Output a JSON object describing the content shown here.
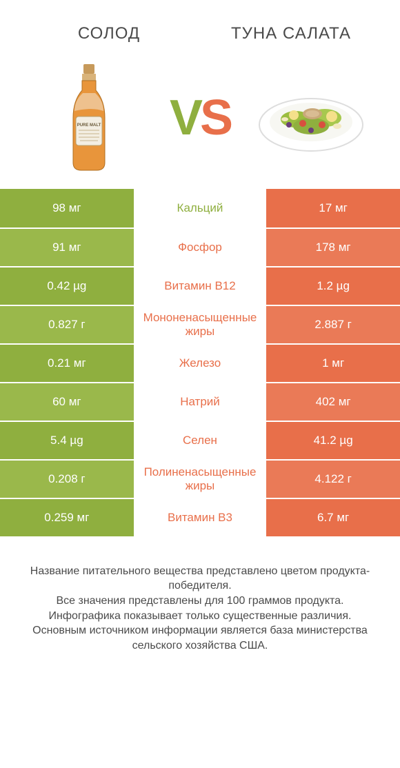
{
  "colors": {
    "green": "#8faf3f",
    "greenAlt": "#9ab84b",
    "orange": "#e86f4a",
    "orangeAlt": "#ea7a57",
    "midText_green": "#8faf3f",
    "midText_orange": "#e86f4a",
    "headerText": "#4a4a4a"
  },
  "header": {
    "left": "СОЛОД",
    "right": "ТУНА САЛАТА"
  },
  "vs": {
    "v": "V",
    "s": "S"
  },
  "rows": [
    {
      "left": "98 мг",
      "mid": "Кальций",
      "right": "17 мг",
      "winner": "left"
    },
    {
      "left": "91 мг",
      "mid": "Фосфор",
      "right": "178 мг",
      "winner": "right"
    },
    {
      "left": "0.42 µg",
      "mid": "Витамин B12",
      "right": "1.2 µg",
      "winner": "right"
    },
    {
      "left": "0.827 г",
      "mid": "Мононенасыщенные жиры",
      "right": "2.887 г",
      "winner": "right"
    },
    {
      "left": "0.21 мг",
      "mid": "Железо",
      "right": "1 мг",
      "winner": "right"
    },
    {
      "left": "60 мг",
      "mid": "Натрий",
      "right": "402 мг",
      "winner": "right"
    },
    {
      "left": "5.4 µg",
      "mid": "Селен",
      "right": "41.2 µg",
      "winner": "right"
    },
    {
      "left": "0.208 г",
      "mid": "Полиненасыщенные жиры",
      "right": "4.122 г",
      "winner": "right"
    },
    {
      "left": "0.259 мг",
      "mid": "Витамин B3",
      "right": "6.7 мг",
      "winner": "right"
    }
  ],
  "footer": {
    "l1": "Название питательного вещества представлено цветом продукта-победителя.",
    "l2": "Все значения представлены для 100 граммов продукта.",
    "l3": "Инфографика показывает только существенные различия.",
    "l4": "Основным источником информации является база министерства сельского хозяйства США."
  }
}
